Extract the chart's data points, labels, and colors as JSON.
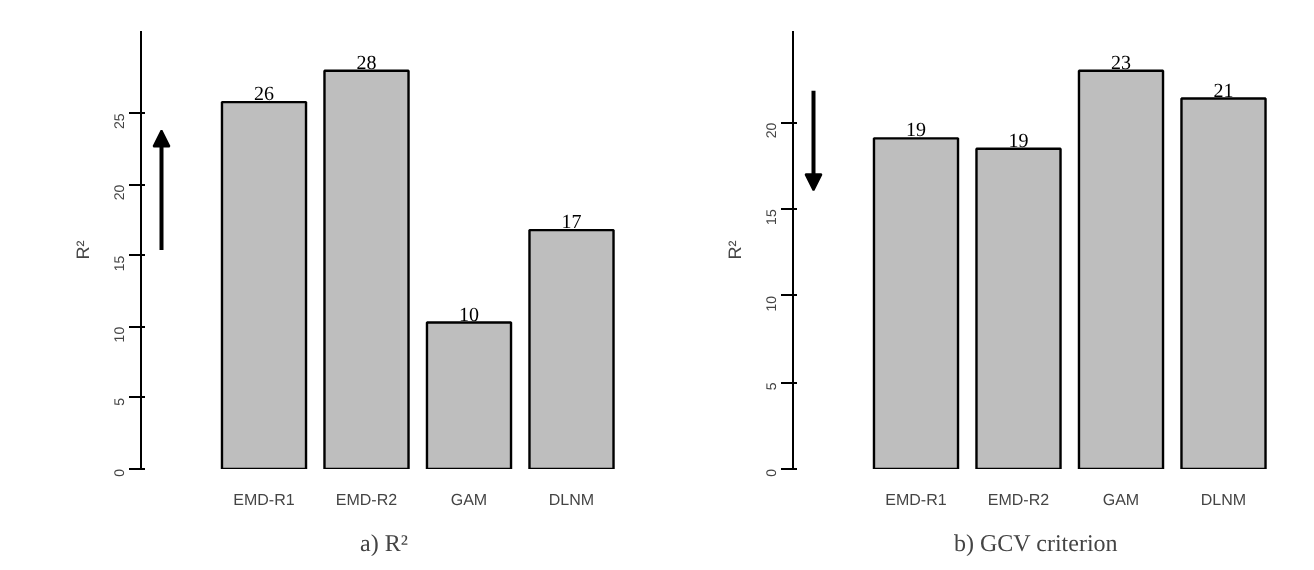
{
  "chart_data": [
    {
      "type": "bar",
      "title": "a)  R²",
      "ylabel": "R²",
      "categories": [
        "EMD-R1",
        "EMD-R2",
        "GAM",
        "DLNM"
      ],
      "values": [
        25.8,
        28.0,
        10.3,
        16.8
      ],
      "value_labels": [
        "26",
        "28",
        "10",
        "17"
      ],
      "color": "#bebebe",
      "ylim": [
        0,
        28
      ],
      "yticks": [
        0,
        5,
        10,
        15,
        20,
        25
      ],
      "grid": false
    },
    {
      "type": "bar",
      "title": "b)  GCV criterion",
      "ylabel": "R²",
      "categories": [
        "EMD-R1",
        "EMD-R2",
        "GAM",
        "DLNM"
      ],
      "values": [
        19.1,
        18.5,
        23.0,
        21.4
      ],
      "value_labels": [
        "19",
        "19",
        "23",
        "21"
      ],
      "color": "#bebebe",
      "ylim": [
        0,
        23
      ],
      "yticks": [
        0,
        5,
        10,
        15,
        20
      ],
      "grid": false
    }
  ]
}
